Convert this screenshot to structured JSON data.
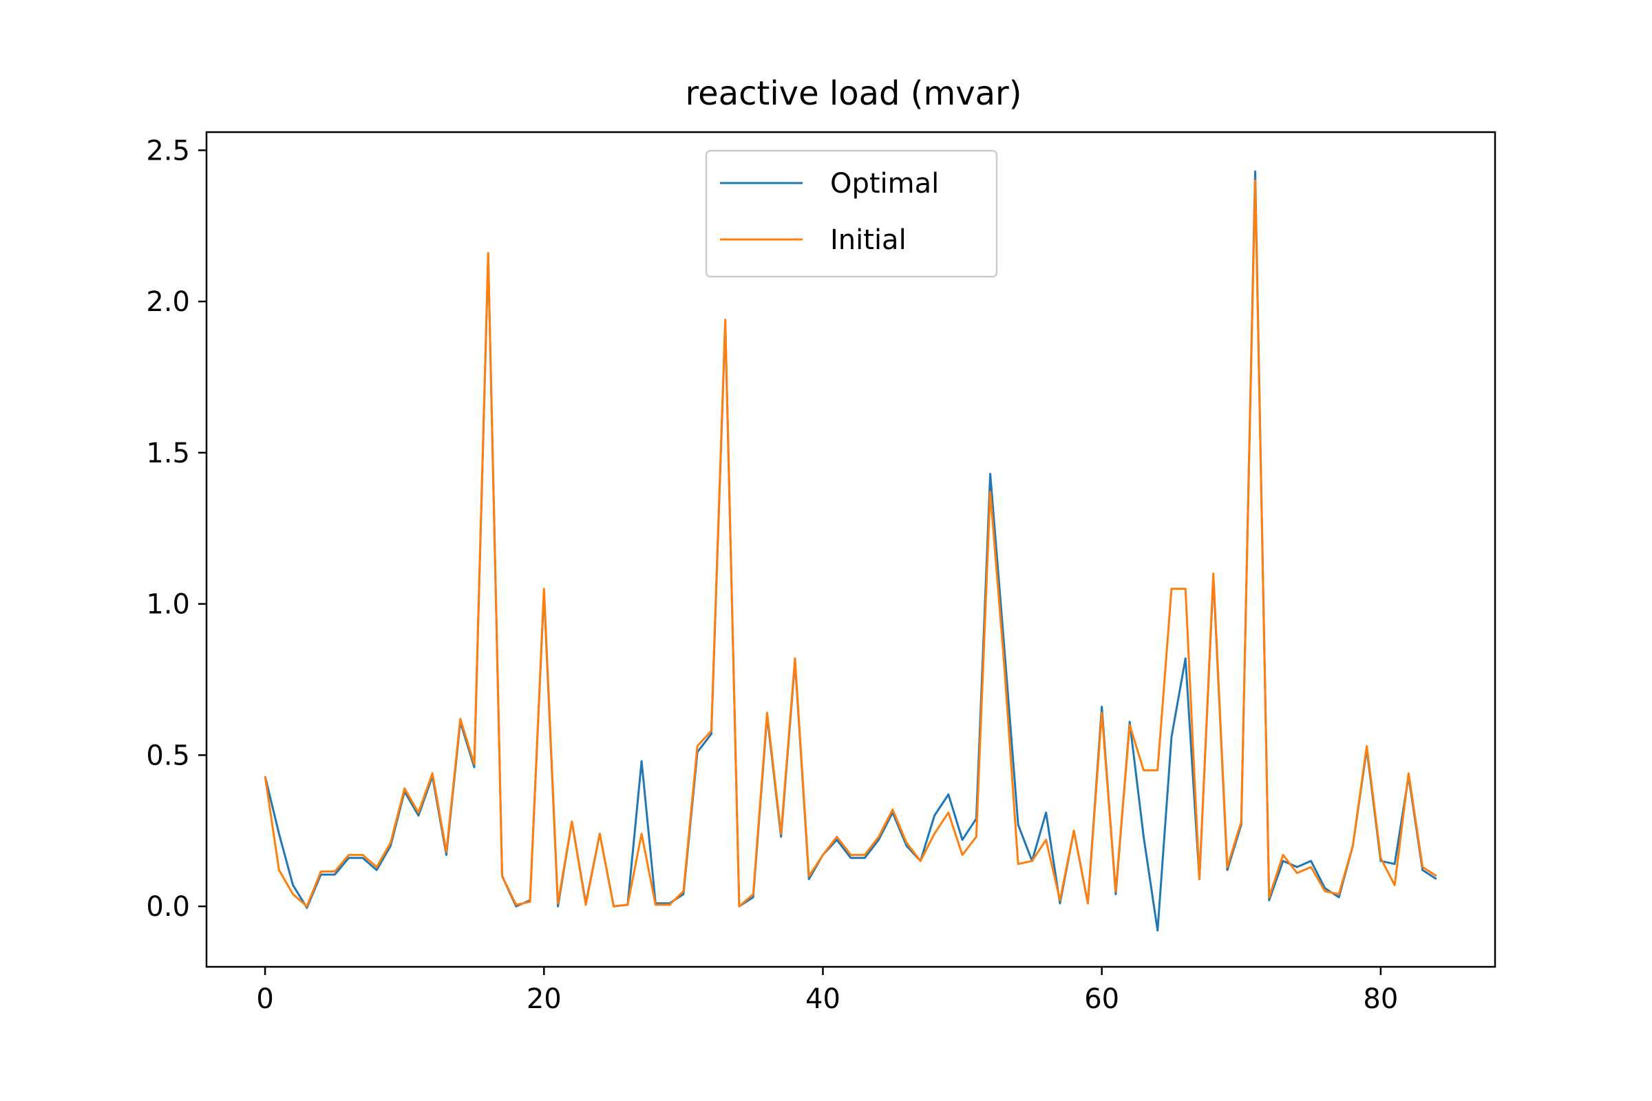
{
  "chart_data": {
    "type": "line",
    "title": "reactive load (mvar)",
    "xlabel": "",
    "ylabel": "",
    "xlim": [
      -4.2,
      88.2
    ],
    "ylim": [
      -0.2,
      2.56
    ],
    "xticks": [
      0,
      20,
      40,
      60,
      80
    ],
    "yticks": [
      0.0,
      0.5,
      1.0,
      1.5,
      2.0,
      2.5
    ],
    "ytick_labels": [
      "0.0",
      "0.5",
      "1.0",
      "1.5",
      "2.0",
      "2.5"
    ],
    "grid": false,
    "legend_position": "upper center",
    "x": [
      0,
      1,
      2,
      3,
      4,
      5,
      6,
      7,
      8,
      9,
      10,
      11,
      12,
      13,
      14,
      15,
      16,
      17,
      18,
      19,
      20,
      21,
      22,
      23,
      24,
      25,
      26,
      27,
      28,
      29,
      30,
      31,
      32,
      33,
      34,
      35,
      36,
      37,
      38,
      39,
      40,
      41,
      42,
      43,
      44,
      45,
      46,
      47,
      48,
      49,
      50,
      51,
      52,
      53,
      54,
      55,
      56,
      57,
      58,
      59,
      60,
      61,
      62,
      63,
      64,
      65,
      66,
      67,
      68,
      69,
      70,
      71,
      72,
      73,
      74,
      75,
      76,
      77,
      78,
      79,
      80,
      81,
      82,
      83,
      84
    ],
    "series": [
      {
        "name": "Optimal",
        "color": "#1f77b4",
        "values": [
          0.43,
          0.24,
          0.07,
          -0.005,
          0.105,
          0.105,
          0.16,
          0.16,
          0.12,
          0.2,
          0.38,
          0.3,
          0.43,
          0.17,
          0.61,
          0.46,
          2.15,
          0.1,
          0.0,
          0.02,
          1.04,
          0.0,
          0.28,
          0.01,
          0.24,
          0.0,
          0.005,
          0.48,
          0.01,
          0.01,
          0.04,
          0.51,
          0.57,
          1.93,
          0.0,
          0.03,
          0.63,
          0.23,
          0.81,
          0.09,
          0.17,
          0.22,
          0.16,
          0.16,
          0.22,
          0.31,
          0.2,
          0.15,
          0.3,
          0.37,
          0.22,
          0.29,
          1.43,
          0.86,
          0.27,
          0.15,
          0.31,
          0.01,
          0.25,
          0.01,
          0.66,
          0.04,
          0.61,
          0.23,
          -0.08,
          0.56,
          0.82,
          0.09,
          1.09,
          0.12,
          0.27,
          2.43,
          0.02,
          0.15,
          0.13,
          0.15,
          0.06,
          0.03,
          0.2,
          0.52,
          0.15,
          0.14,
          0.43,
          0.12,
          0.09
        ]
      },
      {
        "name": "Initial",
        "color": "#ff7f0e",
        "values": [
          0.43,
          0.12,
          0.04,
          0.0,
          0.115,
          0.115,
          0.17,
          0.17,
          0.13,
          0.21,
          0.39,
          0.31,
          0.44,
          0.18,
          0.62,
          0.47,
          2.16,
          0.1,
          0.005,
          0.015,
          1.05,
          0.01,
          0.28,
          0.005,
          0.24,
          0.0,
          0.005,
          0.24,
          0.005,
          0.005,
          0.05,
          0.53,
          0.58,
          1.94,
          0.0,
          0.04,
          0.64,
          0.24,
          0.82,
          0.1,
          0.17,
          0.23,
          0.17,
          0.17,
          0.23,
          0.32,
          0.21,
          0.15,
          0.24,
          0.31,
          0.17,
          0.23,
          1.37,
          0.8,
          0.14,
          0.15,
          0.22,
          0.02,
          0.25,
          0.01,
          0.64,
          0.05,
          0.6,
          0.45,
          0.45,
          1.05,
          1.05,
          0.09,
          1.1,
          0.13,
          0.28,
          2.4,
          0.03,
          0.17,
          0.11,
          0.13,
          0.05,
          0.04,
          0.2,
          0.53,
          0.16,
          0.07,
          0.44,
          0.13,
          0.1
        ]
      }
    ]
  }
}
